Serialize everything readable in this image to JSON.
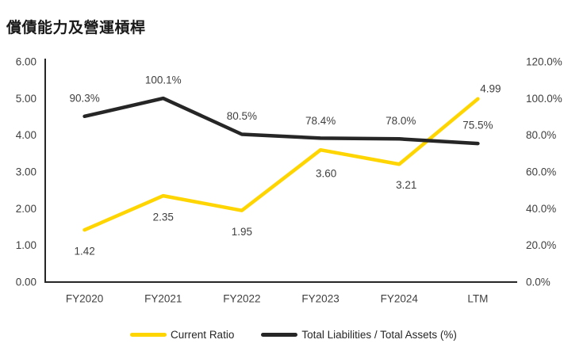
{
  "title": "償債能力及營運槓桿",
  "colors": {
    "current_ratio_line": "#FFD500",
    "liabilities_line": "#262626",
    "axis_line": "#262626",
    "tick_label": "#404040",
    "data_label": "#3f3f3f",
    "title_text": "#1a1a1a"
  },
  "chart_data": {
    "type": "line",
    "title": "償債能力及營運槓桿",
    "categories": [
      "FY2020",
      "FY2021",
      "FY2022",
      "FY2023",
      "FY2024",
      "LTM"
    ],
    "series": [
      {
        "name": "Current Ratio",
        "axis": "left",
        "color": "#FFD500",
        "values": [
          1.42,
          2.35,
          1.95,
          3.6,
          3.21,
          4.99
        ],
        "labels": [
          "1.42",
          "2.35",
          "1.95",
          "3.60",
          "3.21",
          "4.99"
        ]
      },
      {
        "name": "Total Liabilities / Total Assets (%)",
        "axis": "right",
        "color": "#262626",
        "values": [
          90.3,
          100.1,
          80.5,
          78.4,
          78.0,
          75.5
        ],
        "labels": [
          "90.3%",
          "100.1%",
          "80.5%",
          "78.4%",
          "78.0%",
          "75.5%"
        ]
      }
    ],
    "left_axis": {
      "min": 0,
      "max": 6,
      "ticks": [
        "6.00",
        "5.00",
        "4.00",
        "3.00",
        "2.00",
        "1.00",
        "0.00"
      ]
    },
    "right_axis": {
      "min": 0,
      "max": 120,
      "ticks": [
        "120.0%",
        "100.0%",
        "80.0%",
        "60.0%",
        "40.0%",
        "20.0%",
        "0.0%"
      ]
    },
    "grid": false,
    "legend_position": "bottom"
  }
}
